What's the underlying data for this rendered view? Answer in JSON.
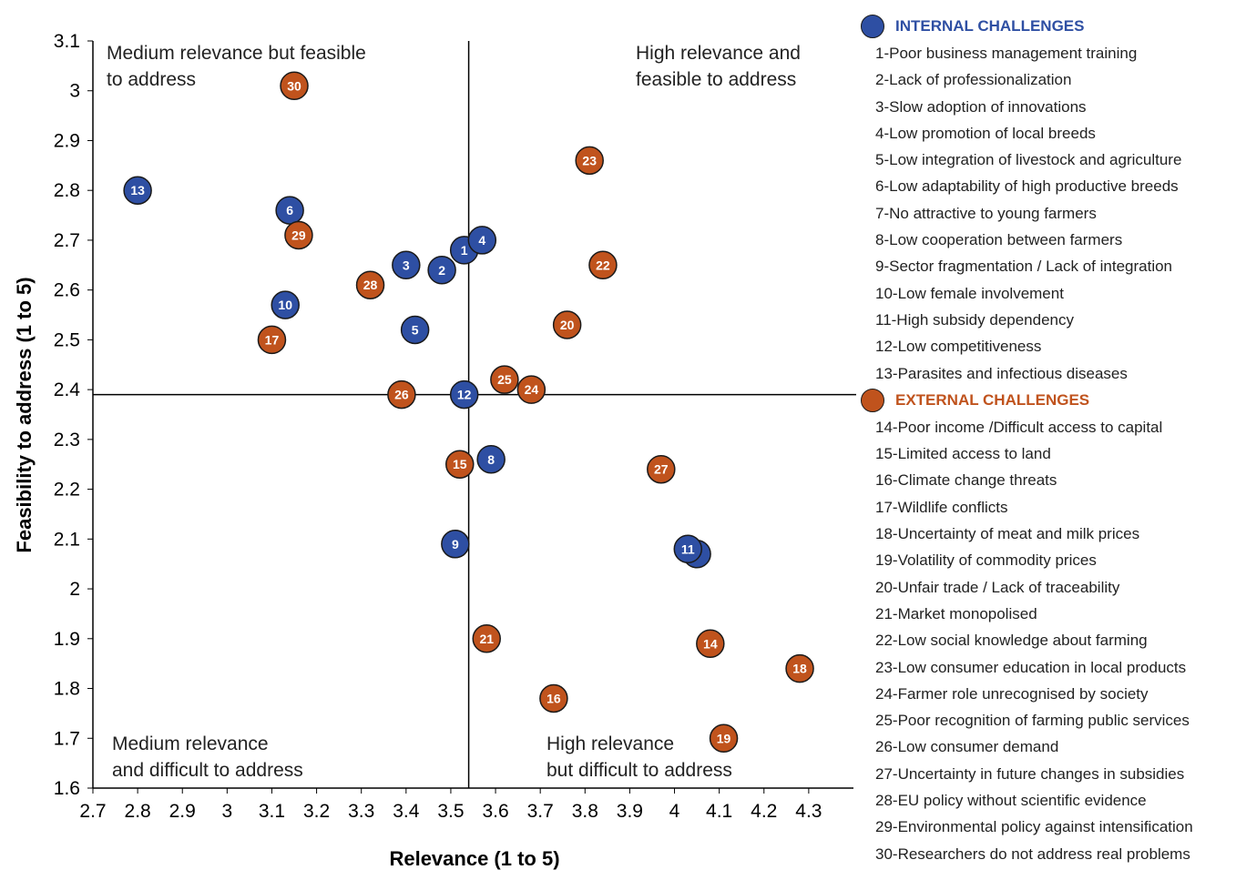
{
  "chart_data": {
    "type": "scatter",
    "xlabel": "Relevance (1 to 5)",
    "ylabel": "Feasibility to address  (1 to 5)",
    "xlim": [
      2.7,
      4.4
    ],
    "ylim": [
      1.6,
      3.1
    ],
    "x_ticks": [
      "2.7",
      "2.8",
      "2.9",
      "3",
      "3.1",
      "3.2",
      "3.3",
      "3.4",
      "3.5",
      "3.6",
      "3.7",
      "3.8",
      "3.9",
      "4",
      "4.1",
      "4.2",
      "4.3"
    ],
    "y_ticks": [
      "3.1",
      "3",
      "2.9",
      "2.8",
      "2.7",
      "2.6",
      "2.5",
      "2.4",
      "2.3",
      "2.2",
      "2.1",
      "2",
      "1.9",
      "1.8",
      "1.7",
      "1.6"
    ],
    "reference_lines": {
      "x": 3.54,
      "y": 2.39
    },
    "quadrant_labels": {
      "top_left_1": "Medium relevance but feasible",
      "top_left_2": "to address",
      "top_right_1": "High relevance and",
      "top_right_2": "feasible to address",
      "bottom_left_1": "Medium relevance",
      "bottom_left_2": "and difficult to address",
      "bottom_right_1": "High relevance",
      "bottom_right_2": "but difficult to address"
    },
    "grid": false,
    "legend_position": "right",
    "colors": {
      "internal": "#2e4fa3",
      "external": "#c0531d",
      "internal_title": "#2e4fa3",
      "external_title": "#c0531d"
    },
    "series": [
      {
        "name": "INTERNAL CHALLENGES",
        "points": [
          {
            "id": "1",
            "x": 3.53,
            "y": 2.68
          },
          {
            "id": "2",
            "x": 3.48,
            "y": 2.64
          },
          {
            "id": "3",
            "x": 3.4,
            "y": 2.65
          },
          {
            "id": "4",
            "x": 3.57,
            "y": 2.7
          },
          {
            "id": "5",
            "x": 3.42,
            "y": 2.52
          },
          {
            "id": "6",
            "x": 3.14,
            "y": 2.76
          },
          {
            "id": "7",
            "x": 4.05,
            "y": 2.07
          },
          {
            "id": "8",
            "x": 3.59,
            "y": 2.26
          },
          {
            "id": "9",
            "x": 3.51,
            "y": 2.09
          },
          {
            "id": "10",
            "x": 3.13,
            "y": 2.57
          },
          {
            "id": "11",
            "x": 4.03,
            "y": 2.08
          },
          {
            "id": "12",
            "x": 3.53,
            "y": 2.39
          },
          {
            "id": "13",
            "x": 2.8,
            "y": 2.8
          }
        ]
      },
      {
        "name": "EXTERNAL CHALLENGES",
        "points": [
          {
            "id": "14",
            "x": 4.08,
            "y": 1.89
          },
          {
            "id": "15",
            "x": 3.52,
            "y": 2.25
          },
          {
            "id": "16",
            "x": 3.73,
            "y": 1.78
          },
          {
            "id": "17",
            "x": 3.1,
            "y": 2.5
          },
          {
            "id": "18",
            "x": 4.28,
            "y": 1.84
          },
          {
            "id": "19",
            "x": 4.11,
            "y": 1.7
          },
          {
            "id": "20",
            "x": 3.76,
            "y": 2.53
          },
          {
            "id": "21",
            "x": 3.58,
            "y": 1.9
          },
          {
            "id": "22",
            "x": 3.84,
            "y": 2.65
          },
          {
            "id": "23",
            "x": 3.81,
            "y": 2.86
          },
          {
            "id": "24",
            "x": 3.68,
            "y": 2.4
          },
          {
            "id": "25",
            "x": 3.62,
            "y": 2.42
          },
          {
            "id": "26",
            "x": 3.39,
            "y": 2.39
          },
          {
            "id": "27",
            "x": 3.97,
            "y": 2.24
          },
          {
            "id": "28",
            "x": 3.32,
            "y": 2.61
          },
          {
            "id": "29",
            "x": 3.16,
            "y": 2.71
          },
          {
            "id": "30",
            "x": 3.15,
            "y": 3.01
          }
        ]
      }
    ]
  },
  "legend": {
    "internal": {
      "title": "INTERNAL CHALLENGES",
      "items": [
        "1-Poor business management training",
        "2-Lack of professionalization",
        "3-Slow adoption of innovations",
        "4-Low promotion of local breeds",
        "5-Low integration of livestock and agriculture",
        "6-Low adaptability of high productive breeds",
        "7-No attractive to young farmers",
        "8-Low cooperation between farmers",
        "9-Sector fragmentation / Lack of integration",
        "10-Low female involvement",
        "11-High subsidy dependency",
        "12-Low competitiveness",
        "13-Parasites and infectious diseases"
      ]
    },
    "external": {
      "title": "EXTERNAL CHALLENGES",
      "items": [
        "14-Poor income /Difficult access to capital",
        "15-Limited access to land",
        "16-Climate change threats",
        "17-Wildlife  conflicts",
        "18-Uncertainty of  meat and milk prices",
        "19-Volatility of commodity prices",
        "20-Unfair trade / Lack of traceability",
        "21-Market monopolised",
        "22-Low social knowledge about farming",
        "23-Low consumer education in local products",
        "24-Farmer role unrecognised by society",
        "25-Poor recognition of farming public services",
        "26-Low consumer demand",
        "27-Uncertainty in future changes in subsidies",
        "28-EU policy without scientific evidence",
        "29-Environmental policy against intensification",
        "30-Researchers do not address real problems"
      ]
    }
  }
}
